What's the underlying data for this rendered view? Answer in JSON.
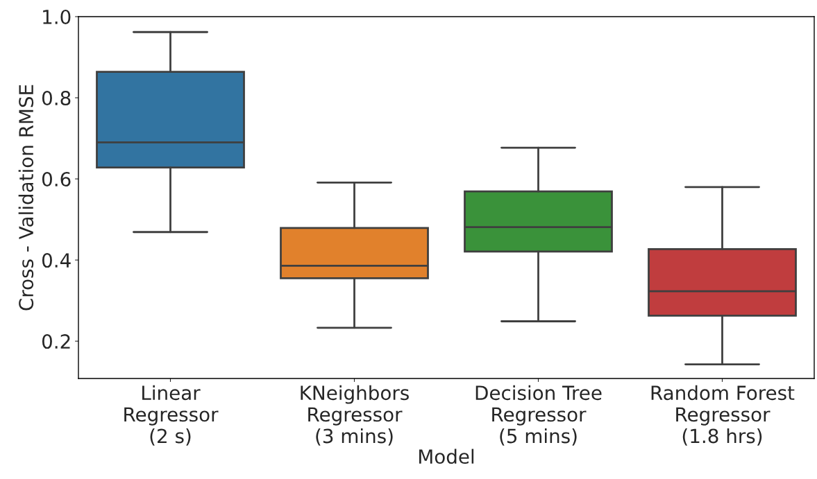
{
  "chart_data": {
    "type": "box",
    "xlabel": "Model",
    "ylabel": "Cross - Validation RMSE",
    "categories": [
      "Linear\nRegressor\n(2 s)",
      "KNeighbors\nRegressor\n(3 mins)",
      "Decision Tree\nRegressor\n(5 mins)",
      "Random Forest\nRegressor\n(1.8 hrs)"
    ],
    "colors": [
      "#3274a1",
      "#e1812c",
      "#3a923a",
      "#c03d3e"
    ],
    "boxes": [
      {
        "low": 0.469,
        "q1": 0.628,
        "median": 0.69,
        "q3": 0.864,
        "high": 0.962
      },
      {
        "low": 0.233,
        "q1": 0.355,
        "median": 0.386,
        "q3": 0.479,
        "high": 0.591
      },
      {
        "low": 0.249,
        "q1": 0.421,
        "median": 0.481,
        "q3": 0.569,
        "high": 0.677
      },
      {
        "low": 0.143,
        "q1": 0.263,
        "median": 0.323,
        "q3": 0.427,
        "high": 0.58
      }
    ],
    "ylim": [
      0.108,
      1.0
    ],
    "yticks": [
      {
        "value": 0.2,
        "label": "0.2"
      },
      {
        "value": 0.4,
        "label": "0.4"
      },
      {
        "value": 0.6,
        "label": "0.6"
      },
      {
        "value": 0.8,
        "label": "0.8"
      },
      {
        "value": 1.0,
        "label": "1.0"
      }
    ],
    "grid": false
  }
}
